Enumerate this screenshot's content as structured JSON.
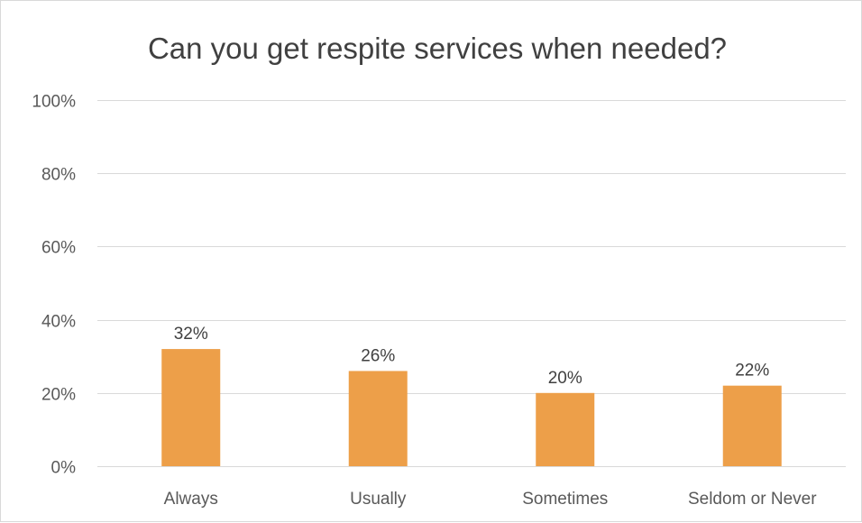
{
  "chart_data": {
    "type": "bar",
    "title": "Can you get respite services when needed?",
    "categories": [
      "Always",
      "Usually",
      "Sometimes",
      "Seldom or Never"
    ],
    "values": [
      32,
      26,
      20,
      22
    ],
    "data_labels": [
      "32%",
      "26%",
      "20%",
      "22%"
    ],
    "y_ticks": [
      0,
      20,
      40,
      60,
      80,
      100
    ],
    "y_tick_labels": [
      "0%",
      "20%",
      "40%",
      "60%",
      "80%",
      "100%"
    ],
    "ylim": [
      0,
      100
    ],
    "xlabel": "",
    "ylabel": "",
    "grid": true,
    "legend": "none",
    "bar_color": "#ED9F49"
  }
}
